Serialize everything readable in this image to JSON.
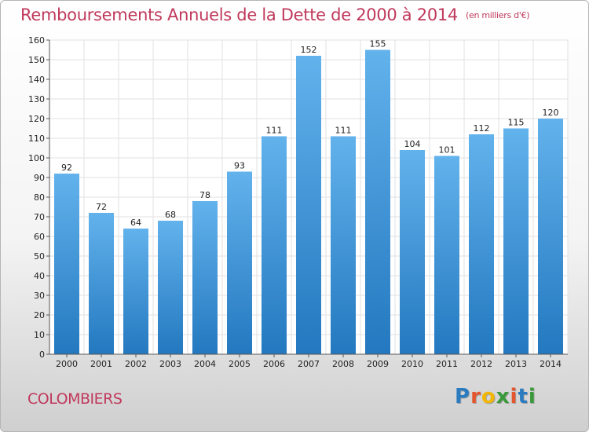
{
  "header": {
    "title": "Remboursements Annuels de la Dette de 2000 à 2014",
    "subtitle": "(en milliers d'€)"
  },
  "footer": {
    "commune": "COLOMBIERS",
    "logo_letters": [
      "P",
      "r",
      "o",
      "x",
      "i",
      "t",
      "i"
    ],
    "logo_colors": [
      "#2a7bbf",
      "#e4572e",
      "#f2b705",
      "#3a9a3a",
      "#e4572e",
      "#2a7bbf",
      "#3a9a3a"
    ]
  },
  "colors": {
    "title": "#c0395c",
    "bar_light": "#62b2ec",
    "bar_dark": "#2378bf",
    "grid": "#e2e2e2",
    "axis": "#555555"
  },
  "chart_data": {
    "type": "bar",
    "title": "Remboursements Annuels de la Dette de 2000 à 2014",
    "subtitle": "(en milliers d'€)",
    "categories": [
      "2000",
      "2001",
      "2002",
      "2003",
      "2004",
      "2005",
      "2006",
      "2007",
      "2008",
      "2009",
      "2010",
      "2011",
      "2012",
      "2013",
      "2014"
    ],
    "values": [
      92,
      72,
      64,
      68,
      78,
      93,
      111,
      152,
      111,
      155,
      104,
      101,
      112,
      115,
      120
    ],
    "ylim": [
      0,
      160
    ],
    "yticks": [
      0,
      10,
      20,
      30,
      40,
      50,
      60,
      70,
      80,
      90,
      100,
      110,
      120,
      130,
      140,
      150,
      160
    ],
    "grid": true,
    "data_labels": true
  }
}
